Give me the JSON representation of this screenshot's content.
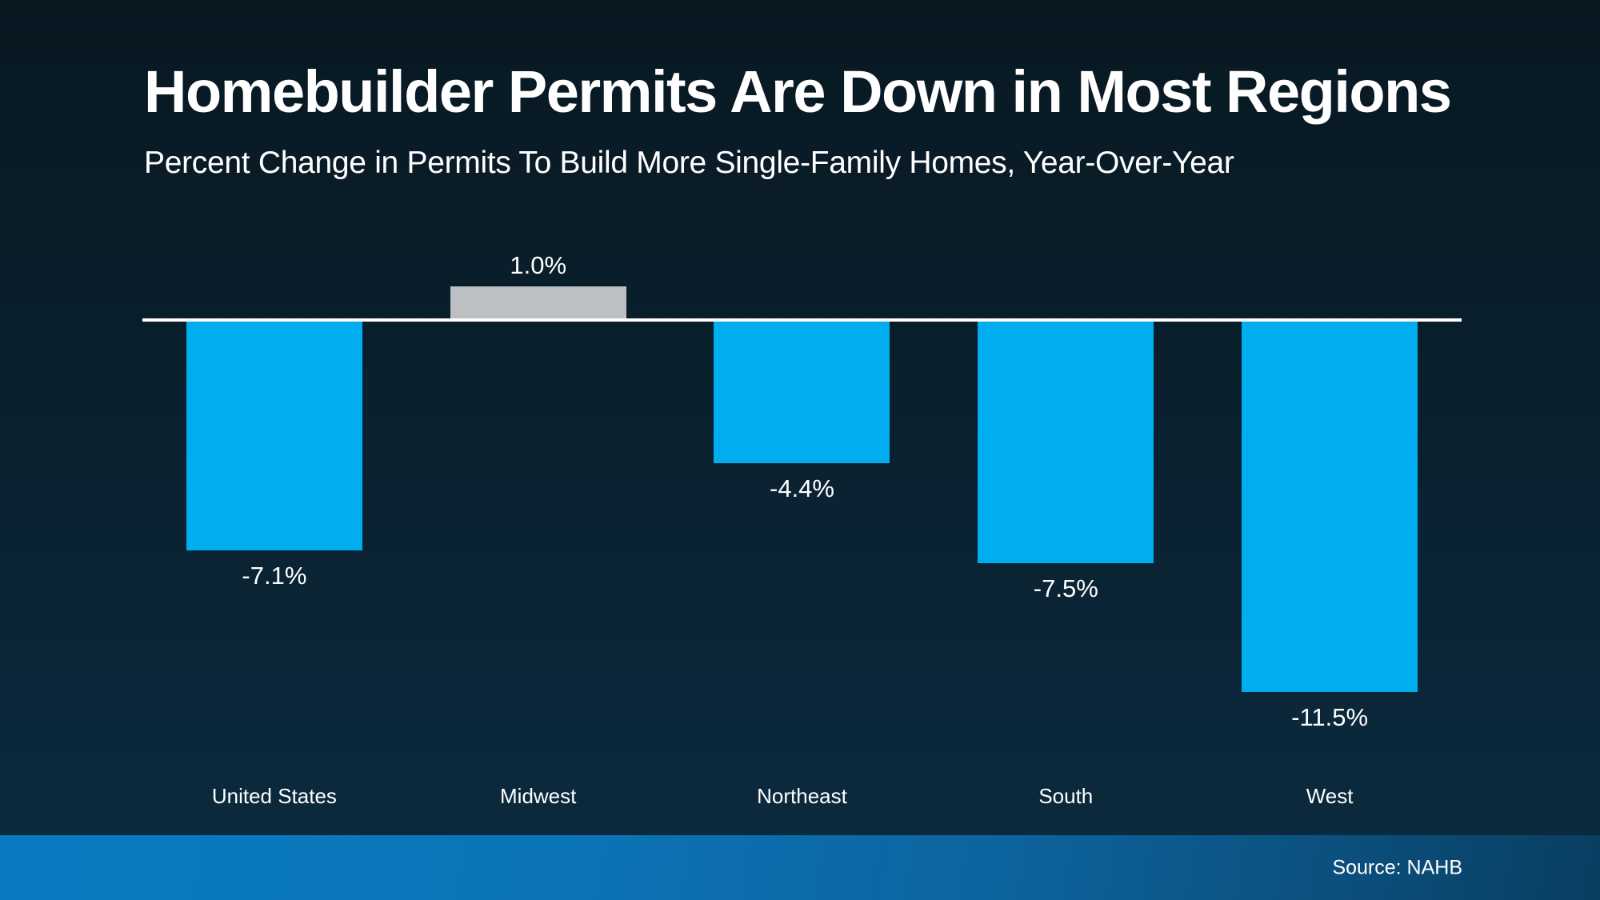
{
  "slide": {
    "title": "Homebuilder Permits Are Down in Most Regions",
    "subtitle": "Percent Change in Permits To Build More Single-Family Homes, Year-Over-Year",
    "source_label": "Source: NAHB"
  },
  "colors": {
    "background_top": "#081821",
    "background_bottom": "#0c2b40",
    "bar_blue": "#00aeef",
    "bar_gray": "#bdc0c3",
    "axis_line": "#ffffff",
    "footer_left": "#0a7bc3",
    "footer_right": "#093e60",
    "text": "#ffffff"
  },
  "chart_data": {
    "type": "bar",
    "title": "Homebuilder Permits Are Down in Most Regions",
    "subtitle": "Percent Change in Permits To Build More Single-Family Homes, Year-Over-Year",
    "categories": [
      "United States",
      "Midwest",
      "Northeast",
      "South",
      "West"
    ],
    "values": [
      -7.1,
      1.0,
      -4.4,
      -7.5,
      -11.5
    ],
    "value_labels": [
      "-7.1%",
      "1.0%",
      "-4.4%",
      "-7.5%",
      "-11.5%"
    ],
    "bar_colors": [
      "#00aeef",
      "#bdc0c3",
      "#00aeef",
      "#00aeef",
      "#00aeef"
    ],
    "xlabel": "",
    "ylabel": "",
    "ylim": [
      -12.5,
      2.0
    ],
    "baseline": 0,
    "grid": false,
    "legend": "none",
    "value_label_position": "outside-end",
    "source": "Source: NAHB"
  }
}
